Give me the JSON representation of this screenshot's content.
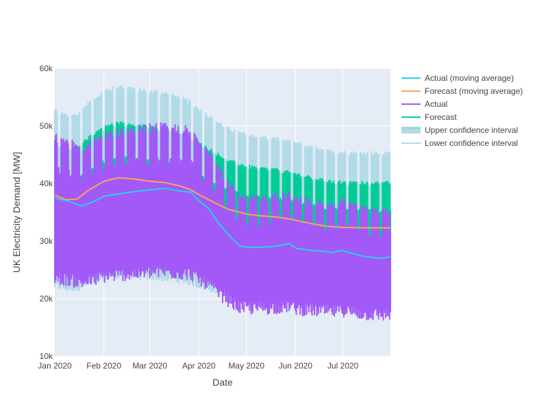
{
  "chart_data": {
    "type": "line",
    "title": "",
    "xlabel": "Date",
    "ylabel": "UK Electricity Demand [MW]",
    "x_range": [
      "2020-01-01",
      "2020-07-31"
    ],
    "ylim": [
      10000,
      60000
    ],
    "x_ticks": [
      {
        "date": "2020-01-01",
        "label": "Jan 2020"
      },
      {
        "date": "2020-02-01",
        "label": "Feb 2020"
      },
      {
        "date": "2020-03-01",
        "label": "Mar 2020"
      },
      {
        "date": "2020-04-01",
        "label": "Apr 2020"
      },
      {
        "date": "2020-05-01",
        "label": "May 2020"
      },
      {
        "date": "2020-06-01",
        "label": "Jun 2020"
      },
      {
        "date": "2020-07-01",
        "label": "Jul 2020"
      }
    ],
    "y_ticks": [
      {
        "value": 10000,
        "label": "10k"
      },
      {
        "value": 20000,
        "label": "20k"
      },
      {
        "value": 30000,
        "label": "30k"
      },
      {
        "value": 40000,
        "label": "40k"
      },
      {
        "value": 50000,
        "label": "50k"
      },
      {
        "value": 60000,
        "label": "60k"
      }
    ],
    "grid": true,
    "legend_position": "top-right",
    "series": [
      {
        "name": "Actual (moving average)",
        "color": "#22d3ee",
        "x": [
          "2020-01-01",
          "2020-01-10",
          "2020-01-18",
          "2020-01-25",
          "2020-02-01",
          "2020-02-10",
          "2020-02-20",
          "2020-03-01",
          "2020-03-10",
          "2020-03-20",
          "2020-03-27",
          "2020-04-01",
          "2020-04-07",
          "2020-04-13",
          "2020-04-20",
          "2020-04-27",
          "2020-05-04",
          "2020-05-15",
          "2020-05-24",
          "2020-05-28",
          "2020-06-01",
          "2020-06-10",
          "2020-06-20",
          "2020-06-24",
          "2020-06-30",
          "2020-07-05",
          "2020-07-15",
          "2020-07-25",
          "2020-07-31"
        ],
        "values": [
          37500,
          36900,
          36100,
          36800,
          37800,
          38200,
          38600,
          38900,
          39200,
          38700,
          38500,
          37000,
          35700,
          33300,
          31000,
          29100,
          28900,
          29000,
          29300,
          29600,
          28800,
          28400,
          28200,
          28000,
          28400,
          28000,
          27300,
          27000,
          27300
        ]
      },
      {
        "name": "Forecast (moving average)",
        "color": "#fca35d",
        "x": [
          "2020-01-01",
          "2020-01-08",
          "2020-01-15",
          "2020-01-22",
          "2020-02-01",
          "2020-02-10",
          "2020-02-20",
          "2020-03-01",
          "2020-03-10",
          "2020-03-20",
          "2020-03-27",
          "2020-04-03",
          "2020-04-13",
          "2020-04-20",
          "2020-05-01",
          "2020-05-10",
          "2020-05-20",
          "2020-05-31",
          "2020-06-10",
          "2020-06-20",
          "2020-07-01",
          "2020-07-15",
          "2020-07-31"
        ],
        "values": [
          38000,
          37200,
          37300,
          38800,
          40400,
          41000,
          40800,
          40400,
          40200,
          39600,
          38900,
          37800,
          36400,
          35500,
          34700,
          34400,
          34200,
          33700,
          33100,
          32600,
          32400,
          32300,
          32300
        ]
      }
    ],
    "oscillating_bands": [
      {
        "name": "Actual",
        "color": "#a259f7",
        "description_values": {
          "daily_peak_range": [
            27000,
            52000
          ],
          "daily_trough_range": [
            12500,
            25000
          ]
        }
      },
      {
        "name": "Forecast",
        "color": "#00cc96",
        "description_values": {
          "daily_peak_range": [
            35000,
            48000
          ],
          "daily_trough_range": [
            18000,
            26000
          ]
        }
      },
      {
        "name": "Upper confidence interval",
        "color": "#b1dbe7",
        "description_values": {
          "daily_peak_range": [
            45000,
            55200
          ]
        }
      },
      {
        "name": "Lower confidence interval",
        "color": "#b1dbe7",
        "description_values": {
          "daily_trough_range": [
            12000,
            24000
          ]
        }
      }
    ],
    "legend": [
      {
        "label": "Actual (moving average)",
        "color": "#22d3ee",
        "kind": "line"
      },
      {
        "label": "Forecast (moving average)",
        "color": "#fca35d",
        "kind": "line"
      },
      {
        "label": "Actual",
        "color": "#a259f7",
        "kind": "line"
      },
      {
        "label": "Forecast",
        "color": "#00cc96",
        "kind": "line"
      },
      {
        "label": "Upper confidence interval",
        "color": "#b1dbe7",
        "kind": "band"
      },
      {
        "label": "Lower confidence interval",
        "color": "#b1dbe7",
        "kind": "line"
      }
    ]
  },
  "colors": {
    "plot_background": "#e5ecf6",
    "grid": "#ffffff",
    "text": "#444444"
  }
}
